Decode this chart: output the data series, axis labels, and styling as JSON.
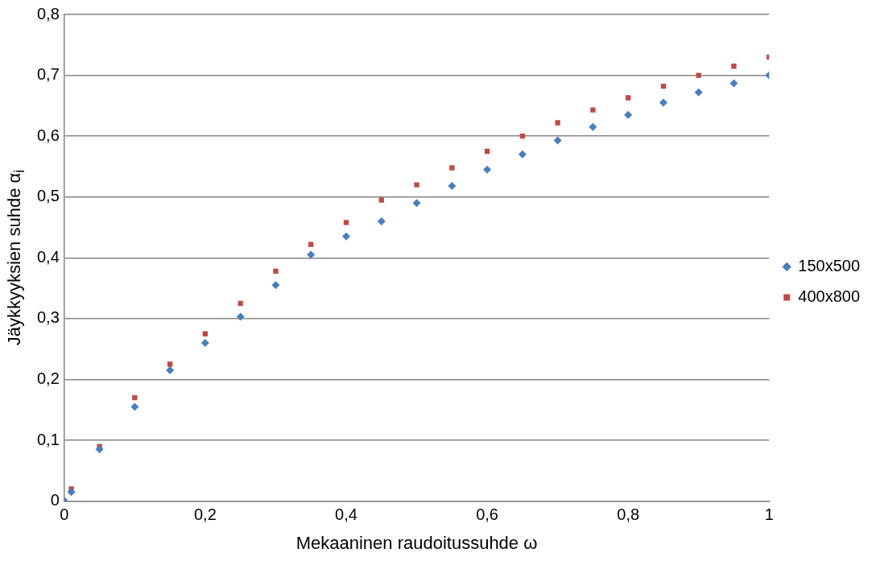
{
  "chart_data": {
    "type": "scatter",
    "xlabel": "Mekaaninen raudoitussuhde ω",
    "ylabel": "Jäykkyyksien suhde α$_{i}$",
    "x": [
      0,
      0.01,
      0.05,
      0.1,
      0.15,
      0.2,
      0.25,
      0.3,
      0.35,
      0.4,
      0.45,
      0.5,
      0.55,
      0.6,
      0.65,
      0.7,
      0.75,
      0.8,
      0.85,
      0.9,
      0.95,
      1
    ],
    "series": [
      {
        "name": "150x500",
        "color": "#4a7ebb",
        "marker": "diamond",
        "values": [
          0,
          0.015,
          0.085,
          0.155,
          0.215,
          0.26,
          0.303,
          0.355,
          0.405,
          0.435,
          0.46,
          0.49,
          0.518,
          0.545,
          0.57,
          0.593,
          0.615,
          0.635,
          0.655,
          0.672,
          0.687,
          0.7
        ]
      },
      {
        "name": "400x800",
        "color": "#be4b48",
        "marker": "square",
        "values": [
          0,
          0.02,
          0.09,
          0.17,
          0.225,
          0.275,
          0.325,
          0.378,
          0.422,
          0.458,
          0.495,
          0.52,
          0.548,
          0.575,
          0.6,
          0.622,
          0.643,
          0.663,
          0.682,
          0.7,
          0.715,
          0.73
        ]
      }
    ],
    "xlim": [
      0,
      1
    ],
    "xticks": [
      0,
      {
        "value": 0.2,
        "label": "0,2"
      },
      {
        "value": 0.4,
        "label": "0,4"
      },
      {
        "value": 0.6,
        "label": "0,6"
      },
      {
        "value": 0.8,
        "label": "0,8"
      },
      1
    ],
    "ylim": [
      0,
      0.8
    ],
    "yticks": [
      0,
      {
        "value": 0.1,
        "label": "0,1"
      },
      {
        "value": 0.2,
        "label": "0,2"
      },
      {
        "value": 0.3,
        "label": "0,3"
      },
      {
        "value": 0.4,
        "label": "0,4"
      },
      {
        "value": 0.5,
        "label": "0,5"
      },
      {
        "value": 0.6,
        "label": "0,6"
      },
      {
        "value": 0.7,
        "label": "0,7"
      },
      {
        "value": 0.8,
        "label": "0,8"
      }
    ],
    "grid": "y",
    "legend": "right"
  }
}
